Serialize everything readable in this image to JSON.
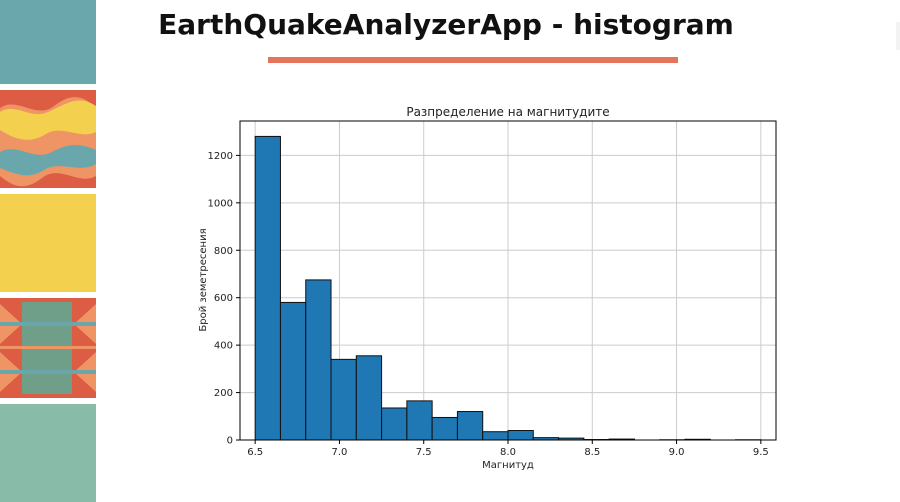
{
  "slide": {
    "title": "EarthQuakeAnalyzerApp - histogram",
    "accent_color": "#e4745a"
  },
  "decor": {
    "colors": {
      "teal": "#6aa7ad",
      "coral": "#dc5c44",
      "orange": "#ef9465",
      "yellow": "#f4d04f",
      "sage": "#6f9f88",
      "mint": "#88bca9"
    }
  },
  "chart_data": {
    "type": "bar",
    "title": "Разпределение на магнитудите",
    "xlabel": "Магнитуд",
    "ylabel": "Брой земетресения",
    "bin_edges": [
      6.5,
      6.65,
      6.8,
      6.95,
      7.1,
      7.25,
      7.4,
      7.55,
      7.7,
      7.85,
      8.0,
      8.15,
      8.3,
      8.45,
      8.6,
      8.75,
      8.9,
      9.05,
      9.2,
      9.35,
      9.5
    ],
    "values": [
      1280,
      580,
      675,
      340,
      355,
      135,
      165,
      95,
      120,
      35,
      40,
      10,
      8,
      2,
      4,
      0,
      1,
      3,
      0,
      1
    ],
    "xlim": [
      6.41,
      9.59
    ],
    "ylim": [
      0,
      1345
    ],
    "xticks": [
      6.5,
      7.0,
      7.5,
      8.0,
      8.5,
      9.0,
      9.5
    ],
    "xtick_labels": [
      "6.5",
      "7.0",
      "7.5",
      "8.0",
      "8.5",
      "9.0",
      "9.5"
    ],
    "yticks": [
      0,
      200,
      400,
      600,
      800,
      1000,
      1200
    ],
    "ytick_labels": [
      "0",
      "200",
      "400",
      "600",
      "800",
      "1000",
      "1200"
    ],
    "grid": true,
    "bar_color": "#1f77b4",
    "edge_color": "#111111"
  }
}
